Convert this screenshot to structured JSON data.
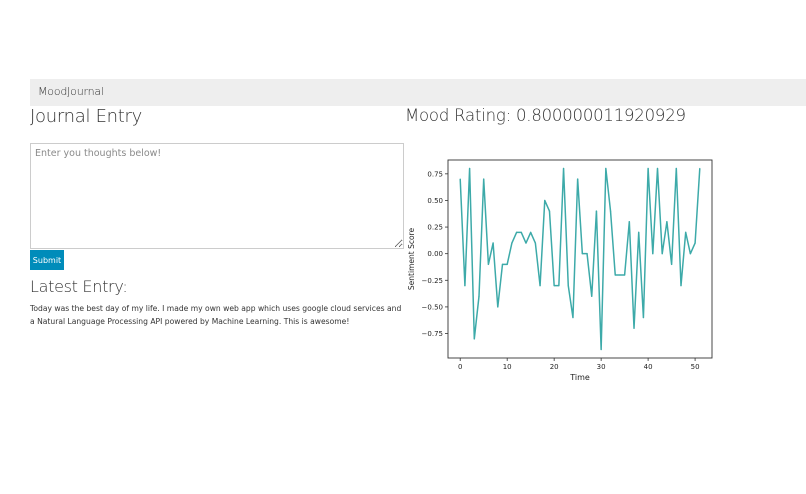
{
  "navbar": {
    "brand": "MoodJournal"
  },
  "journal": {
    "heading": "Journal Entry",
    "placeholder": "Enter you thoughts below!",
    "submit_label": "Submit"
  },
  "latest": {
    "heading": "Latest Entry:",
    "text": "Today was the best day of my life. I made my own web app which uses google cloud services and a Natural Language Processing API powered by Machine Learning. This is awesome!"
  },
  "mood": {
    "label": "Mood Rating:",
    "value": "0.800000011920929"
  },
  "chart_data": {
    "type": "line",
    "xlabel": "Time",
    "ylabel": "Sentiment Score",
    "xlim": [
      -2.6,
      53.6
    ],
    "ylim": [
      -0.98,
      0.88
    ],
    "xticks": [
      0,
      10,
      20,
      30,
      40,
      50
    ],
    "xtick_labels": [
      "0",
      "10",
      "20",
      "30",
      "40",
      "50"
    ],
    "yticks": [
      0.75,
      0.5,
      0.25,
      0.0,
      -0.25,
      -0.5,
      -0.75
    ],
    "ytick_labels": [
      "0.75",
      "0.50",
      "0.25",
      "0.00",
      "−0.25",
      "−0.50",
      "−0.75"
    ],
    "grid": false,
    "color": "#3daaa9",
    "series": [
      {
        "x": [
          0,
          1,
          2,
          3,
          4,
          5,
          6,
          7,
          8,
          9,
          10,
          11,
          12,
          13,
          14,
          15,
          16,
          17,
          18,
          19,
          20,
          21,
          22,
          23,
          24,
          25,
          26,
          27,
          28,
          29,
          30,
          31,
          32,
          33,
          34,
          35,
          36,
          37,
          38,
          39,
          40,
          41,
          42,
          43,
          44,
          45,
          46,
          47,
          48,
          49,
          50,
          51
        ],
        "values": [
          0.7,
          -0.3,
          0.8,
          -0.8,
          -0.4,
          0.7,
          -0.1,
          0.1,
          -0.5,
          -0.1,
          -0.1,
          0.1,
          0.2,
          0.2,
          0.1,
          0.2,
          0.1,
          -0.3,
          0.5,
          0.4,
          -0.3,
          -0.3,
          0.8,
          -0.3,
          -0.6,
          0.7,
          0.0,
          0.0,
          -0.4,
          0.4,
          -0.9,
          0.8,
          0.4,
          -0.2,
          -0.2,
          -0.2,
          0.3,
          -0.7,
          0.2,
          -0.6,
          0.8,
          0.0,
          0.8,
          0.0,
          0.3,
          -0.1,
          0.8,
          -0.3,
          0.2,
          0.0,
          0.1,
          0.8
        ]
      }
    ]
  }
}
